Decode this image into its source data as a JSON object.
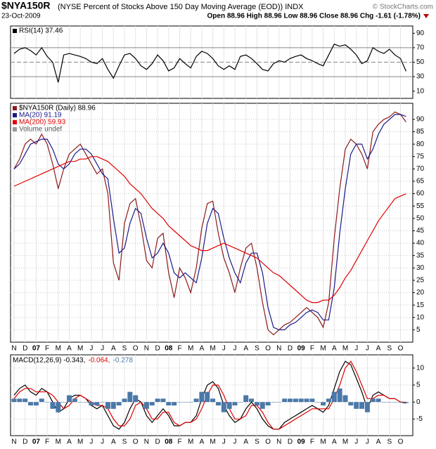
{
  "header": {
    "symbol": "$NYA150R",
    "description": "(NYSE Percent of Stocks Above 150 Day Moving Average (EOD)) INDX",
    "source": "© StockCharts.com",
    "date": "23-Oct-2009",
    "quote": "Open 88.96 High 88.96 Low 88.96 Close 88.96 Chg -1.61 (-1.78%)"
  },
  "chart_data": [
    {
      "type": "line",
      "ylim": [
        0,
        100
      ],
      "yticks": [
        90,
        70,
        50,
        30,
        10
      ],
      "reference_lines": [
        70,
        50,
        30
      ],
      "grid": false,
      "series": [
        {
          "name": "RSI(14) 37.46",
          "color": "#000000",
          "values": [
            62,
            68,
            70,
            66,
            60,
            70,
            58,
            50,
            22,
            60,
            62,
            60,
            58,
            55,
            50,
            48,
            55,
            40,
            28,
            45,
            60,
            62,
            55,
            45,
            40,
            48,
            60,
            52,
            38,
            42,
            55,
            48,
            42,
            58,
            65,
            62,
            55,
            45,
            40,
            45,
            40,
            58,
            60,
            55,
            48,
            40,
            38,
            48,
            52,
            50,
            55,
            58,
            60,
            55,
            52,
            48,
            45,
            60,
            75,
            72,
            74,
            68,
            60,
            48,
            52,
            70,
            65,
            62,
            68,
            60,
            55,
            37.46
          ]
        }
      ]
    },
    {
      "type": "line",
      "ylim": [
        0,
        96.5
      ],
      "yticks": [
        5,
        10,
        15,
        20,
        25,
        30,
        35,
        40,
        45,
        50,
        55,
        60,
        65,
        70,
        75,
        80,
        85,
        90
      ],
      "grid": true,
      "legend_extra": "Volume undef",
      "categories": [
        "N",
        null,
        "D",
        null,
        "07",
        null,
        "F",
        null,
        "M",
        null,
        "A",
        null,
        "M",
        null,
        "J",
        null,
        "J",
        null,
        "A",
        null,
        "S",
        null,
        "O",
        null,
        "N",
        null,
        "D",
        null,
        "08",
        null,
        "F",
        null,
        "M",
        null,
        "A",
        null,
        "M",
        null,
        "J",
        null,
        "J",
        null,
        "A",
        null,
        "S",
        null,
        "O",
        null,
        "N",
        null,
        "D",
        null,
        "09",
        null,
        "F",
        null,
        "M",
        null,
        "A",
        null,
        "M",
        null,
        "J",
        null,
        "J",
        null,
        "A",
        null,
        "S",
        null,
        "O",
        null
      ],
      "series": [
        {
          "name": "$NYA150R (Daily) 88.96",
          "color": "#8b1a1a",
          "values": [
            70,
            74,
            80,
            82,
            80,
            84,
            80,
            72,
            62,
            70,
            76,
            78,
            80,
            76,
            72,
            68,
            70,
            60,
            32,
            25,
            48,
            56,
            58,
            47,
            33,
            30,
            42,
            44,
            28,
            18,
            30,
            26,
            20,
            30,
            46,
            56,
            57,
            44,
            34,
            28,
            20,
            30,
            38,
            40,
            30,
            16,
            5,
            3,
            5,
            7,
            8,
            10,
            12,
            14,
            12,
            10,
            6,
            16,
            42,
            62,
            78,
            82,
            80,
            76,
            70,
            85,
            88,
            90,
            91,
            93,
            92,
            88.96
          ]
        },
        {
          "name": "MA(20) 91.19",
          "color": "#1a1a8c",
          "values": [
            70,
            72,
            76,
            80,
            81,
            82,
            82,
            78,
            72,
            70,
            72,
            76,
            78,
            78,
            76,
            72,
            68,
            66,
            50,
            36,
            38,
            48,
            54,
            52,
            42,
            34,
            36,
            40,
            36,
            28,
            26,
            28,
            26,
            24,
            34,
            48,
            54,
            52,
            42,
            34,
            28,
            24,
            32,
            36,
            36,
            28,
            14,
            6,
            5,
            5,
            7,
            8,
            10,
            12,
            13,
            12,
            9,
            9,
            22,
            44,
            62,
            76,
            80,
            80,
            74,
            78,
            84,
            88,
            90,
            92,
            92,
            91.19
          ]
        },
        {
          "name": "MA(200) 59.93",
          "color": "#e00000",
          "values": [
            63,
            64,
            65,
            66,
            67,
            68,
            69,
            70,
            71,
            72,
            73,
            73,
            74,
            74,
            75,
            75,
            74,
            73,
            71,
            69,
            67,
            64,
            62,
            60,
            57,
            54,
            52,
            50,
            47,
            45,
            43,
            41,
            39,
            38,
            37,
            37,
            38,
            39,
            40,
            39,
            38,
            37,
            36,
            35,
            34,
            32,
            30,
            28,
            27,
            25,
            23,
            21,
            19,
            17,
            16,
            16,
            17,
            17,
            19,
            22,
            26,
            29,
            33,
            37,
            41,
            45,
            49,
            52,
            55,
            58,
            59,
            59.93
          ]
        }
      ]
    },
    {
      "type": "line",
      "ylim": [
        -9.9,
        13.9
      ],
      "yticks": [
        10,
        5,
        0,
        -5
      ],
      "grid": true,
      "categories": [
        "N",
        null,
        "D",
        null,
        "07",
        null,
        "F",
        null,
        "M",
        null,
        "A",
        null,
        "M",
        null,
        "J",
        null,
        "J",
        null,
        "A",
        null,
        "S",
        null,
        "O",
        null,
        "N",
        null,
        "D",
        null,
        "08",
        null,
        "F",
        null,
        "M",
        null,
        "A",
        null,
        "M",
        null,
        "J",
        null,
        "J",
        null,
        "A",
        null,
        "S",
        null,
        "O",
        null,
        "N",
        null,
        "D",
        null,
        "09",
        null,
        "F",
        null,
        "M",
        null,
        "A",
        null,
        "M",
        null,
        "J",
        null,
        "J",
        null,
        "A",
        null,
        "S",
        null,
        "O",
        null
      ],
      "series": [
        {
          "name": "MACD(12,26,9) -0.343,",
          "color": "#000000",
          "values": [
            2,
            4,
            5,
            3,
            2,
            4,
            3,
            0,
            -3,
            -2,
            1,
            2,
            2,
            1,
            -1,
            -2,
            -1,
            -4,
            -7,
            -8,
            -6,
            -2,
            1,
            0,
            -4,
            -6,
            -4,
            -2,
            -4,
            -7,
            -7,
            -6,
            -6,
            -4,
            1,
            5,
            6,
            4,
            -1,
            -4,
            -6,
            -5,
            -2,
            0,
            -2,
            -5,
            -7,
            -8,
            -8,
            -6,
            -5,
            -4,
            -3,
            -2,
            -1,
            -2,
            -3,
            -1,
            4,
            9,
            12,
            11,
            7,
            3,
            -2,
            2,
            3,
            2,
            1,
            1,
            0,
            -0.343
          ]
        },
        {
          "name": "-0.064,",
          "color": "#e00000",
          "values": [
            1,
            3,
            4,
            4,
            3,
            3,
            3,
            2,
            0,
            -2,
            -1,
            1,
            2,
            1,
            0,
            -1,
            -1,
            -2,
            -5,
            -7,
            -7,
            -5,
            -1,
            0,
            -2,
            -5,
            -5,
            -3,
            -3,
            -6,
            -7,
            -6,
            -6,
            -5,
            -2,
            2,
            5,
            5,
            2,
            -2,
            -5,
            -5,
            -4,
            -1,
            -1,
            -3,
            -6,
            -8,
            -8,
            -7,
            -6,
            -5,
            -4,
            -3,
            -2,
            -2,
            -2,
            -2,
            1,
            5,
            10,
            12,
            9,
            5,
            1,
            1,
            2,
            2,
            1,
            1,
            0,
            -0.064
          ]
        },
        {
          "name": "-0.278",
          "color": "#4a78a8",
          "type": "bar",
          "values": [
            1,
            1,
            1,
            -1,
            -1,
            1,
            0,
            -2,
            -3,
            0,
            2,
            1,
            0,
            0,
            -1,
            -1,
            0,
            -2,
            -2,
            -1,
            1,
            3,
            2,
            0,
            -2,
            -1,
            1,
            1,
            -1,
            -1,
            0,
            0,
            0,
            1,
            3,
            3,
            1,
            -1,
            -3,
            -2,
            -1,
            0,
            2,
            1,
            -1,
            -2,
            -1,
            0,
            0,
            1,
            1,
            1,
            1,
            1,
            1,
            0,
            -1,
            1,
            3,
            4,
            2,
            -1,
            -2,
            -2,
            -3,
            1,
            1,
            0,
            0,
            0,
            0,
            -0.278
          ]
        }
      ]
    }
  ]
}
